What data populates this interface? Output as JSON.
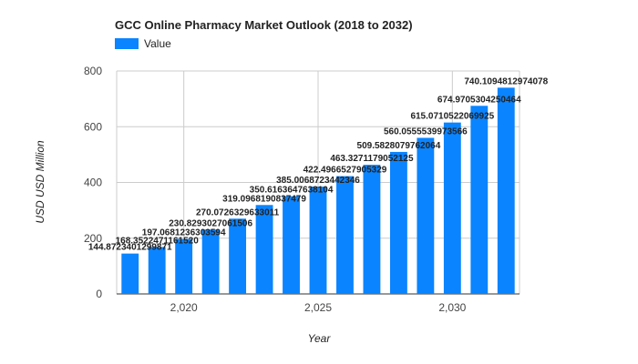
{
  "chart_data": {
    "type": "bar",
    "title": "GCC Online Pharmacy Market Outlook (2018 to 2032)",
    "xlabel": "Year",
    "ylabel": "USD USD Million",
    "legend": {
      "position": "top-left",
      "entries": [
        "Value"
      ]
    },
    "series": [
      {
        "name": "Value",
        "color": "#0a84ff",
        "x": [
          2018,
          2019,
          2020,
          2021,
          2022,
          2023,
          2024,
          2025,
          2026,
          2027,
          2028,
          2029,
          2030,
          2031,
          2032
        ],
        "values": [
          144.87,
          168.35,
          197.07,
          230.83,
          270.07,
          319.1,
          350.62,
          385.01,
          422.5,
          463.33,
          509.58,
          560.06,
          615.07,
          674.97,
          740.1
        ],
        "labels": [
          "144.8723401299871",
          "168.3522471161520",
          "197.0681236303594",
          "230.8293027061506",
          "270.0726329633011",
          "319.0968190837479",
          "350.6163647638104",
          "385.0068723442346",
          "422.4966527905329",
          "463.3271179052125",
          "509.5828079762064",
          "560.0555539973566",
          "615.0710522069925",
          "674.9705304250464",
          "740.1094812974078"
        ]
      }
    ],
    "ylim": [
      0,
      800
    ],
    "yticks": [
      0,
      200,
      400,
      600,
      800
    ],
    "yticklabels": [
      "0",
      "200",
      "400",
      "600",
      "800"
    ],
    "xlim": [
      2017.5,
      2032.5
    ],
    "xticks": [
      2020,
      2025,
      2030
    ],
    "xticklabels": [
      "2,020",
      "2,025",
      "2,030"
    ],
    "grid": true
  }
}
